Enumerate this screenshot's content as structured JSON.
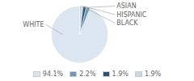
{
  "chart_data": {
    "type": "pie",
    "categories": [
      "WHITE",
      "ASIAN",
      "HISPANIC",
      "BLACK"
    ],
    "values": [
      94.1,
      2.2,
      1.9,
      1.9
    ],
    "value_labels": [
      "94.1%",
      "2.2%",
      "1.9%",
      "1.9%"
    ],
    "colors": [
      "#dce6f1",
      "#6b9ab8",
      "#2f5373",
      "#c5d9e8"
    ],
    "legend": "bottom"
  }
}
